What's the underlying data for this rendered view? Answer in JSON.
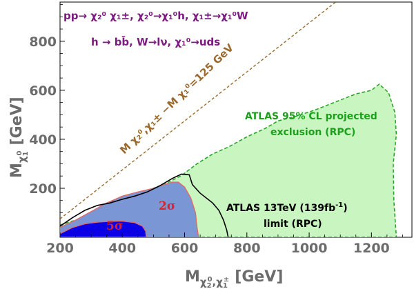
{
  "chart_data": {
    "type": "area",
    "title": "",
    "xlabel": "M_{χ2^0, χ1^±} [GeV]",
    "xlabel_main": "M",
    "xlabel_sub": "χ",
    "xlabel_sub_rest": "0",
    "xlabel_sub_2": "2",
    "xlabel_sub_sep": ",χ",
    "xlabel_sub_1": "1",
    "xlabel_sub_pm": "±",
    "xlabel_unit": "[GeV]",
    "ylabel": "M_{χ1^0} [GeV]",
    "ylabel_main": "M",
    "ylabel_sub": "χ",
    "ylabel_sub_1": "1",
    "ylabel_sub_0": "0",
    "ylabel_unit": "[GeV]",
    "xlim": [
      200,
      1330
    ],
    "ylim": [
      0,
      960
    ],
    "x_ticks": [
      200,
      400,
      600,
      800,
      1000,
      1200
    ],
    "x_tick_labels": [
      "200",
      "400",
      "600",
      "800",
      "1000",
      "1200"
    ],
    "y_ticks": [
      200,
      400,
      600,
      800
    ],
    "y_tick_labels": [
      "200",
      "400",
      "600",
      "800"
    ],
    "series": [
      {
        "name": "ATLAS 95% CL projected exclusion (RPC)",
        "style": "filled-dashed",
        "points": [
          [
            200,
            50
          ],
          [
            250,
            70
          ],
          [
            300,
            95
          ],
          [
            360,
            130
          ],
          [
            420,
            165
          ],
          [
            480,
            190
          ],
          [
            540,
            220
          ],
          [
            590,
            252
          ],
          [
            640,
            300
          ],
          [
            690,
            340
          ],
          [
            740,
            368
          ],
          [
            800,
            410
          ],
          [
            860,
            445
          ],
          [
            900,
            475
          ],
          [
            960,
            495
          ],
          [
            1020,
            520
          ],
          [
            1080,
            550
          ],
          [
            1150,
            585
          ],
          [
            1200,
            600
          ],
          [
            1225,
            625
          ],
          [
            1255,
            590
          ],
          [
            1275,
            510
          ],
          [
            1280,
            420
          ],
          [
            1270,
            300
          ],
          [
            1272,
            150
          ],
          [
            1280,
            0
          ],
          [
            200,
            0
          ]
        ]
      },
      {
        "name": "2σ",
        "style": "filled",
        "points": [
          [
            200,
            40
          ],
          [
            250,
            70
          ],
          [
            300,
            105
          ],
          [
            350,
            140
          ],
          [
            400,
            168
          ],
          [
            450,
            185
          ],
          [
            500,
            200
          ],
          [
            530,
            213
          ],
          [
            560,
            225
          ],
          [
            580,
            225
          ],
          [
            600,
            205
          ],
          [
            620,
            160
          ],
          [
            635,
            100
          ],
          [
            640,
            40
          ],
          [
            645,
            0
          ],
          [
            200,
            0
          ]
        ]
      },
      {
        "name": "5σ",
        "style": "filled",
        "points": [
          [
            200,
            15
          ],
          [
            240,
            40
          ],
          [
            280,
            55
          ],
          [
            320,
            62
          ],
          [
            360,
            65
          ],
          [
            400,
            66
          ],
          [
            440,
            60
          ],
          [
            465,
            45
          ],
          [
            475,
            25
          ],
          [
            477,
            0
          ],
          [
            200,
            0
          ]
        ]
      },
      {
        "name": "ATLAS 13TeV (139fb^-1) limit (RPC)",
        "style": "line",
        "points": [
          [
            200,
            45
          ],
          [
            240,
            80
          ],
          [
            280,
            110
          ],
          [
            320,
            130
          ],
          [
            360,
            140
          ],
          [
            400,
            155
          ],
          [
            440,
            168
          ],
          [
            480,
            185
          ],
          [
            520,
            210
          ],
          [
            560,
            240
          ],
          [
            590,
            258
          ],
          [
            615,
            255
          ],
          [
            625,
            215
          ],
          [
            650,
            180
          ],
          [
            690,
            140
          ],
          [
            710,
            110
          ],
          [
            725,
            70
          ],
          [
            735,
            30
          ],
          [
            740,
            0
          ]
        ]
      },
      {
        "name": "M_{χ2^0,χ1^±} − M_{χ1^0} = 125 GeV",
        "style": "dashed-line",
        "points": [
          [
            200,
            75
          ],
          [
            1085,
            960
          ]
        ]
      }
    ],
    "annotations": {
      "process_line1": "pp→ χ₂⁰ χ₁±, χ₂⁰→χ₁⁰h, χ₁±→χ₁⁰W",
      "process_line2": "h → bb̄, W→lν, χ₁⁰→uds",
      "kinematic_line": "M χ₂⁰,χ₁± −M χ₁⁰=125 GeV",
      "projected_line1": "ATLAS 95% CL projected",
      "projected_line2": "exclusion (RPC)",
      "limit_line1_a": "ATLAS 13TeV (139fb",
      "limit_line1_sup": "-1",
      "limit_line1_b": ")",
      "limit_line2": "limit (RPC)",
      "label_2sigma": "2σ",
      "label_5sigma": "5σ"
    },
    "colors": {
      "projected_fill": "#c8f5c0",
      "projected_edge": "#2aa52a",
      "twosigma_fill": "#7b96d4",
      "twosigma_edge": "#e06b6b",
      "fivesigma_fill": "#0a00e6",
      "fivesigma_edge": "#e06b6b",
      "limit_line": "#000000",
      "kinematic_line": "#9a6a2f"
    }
  }
}
